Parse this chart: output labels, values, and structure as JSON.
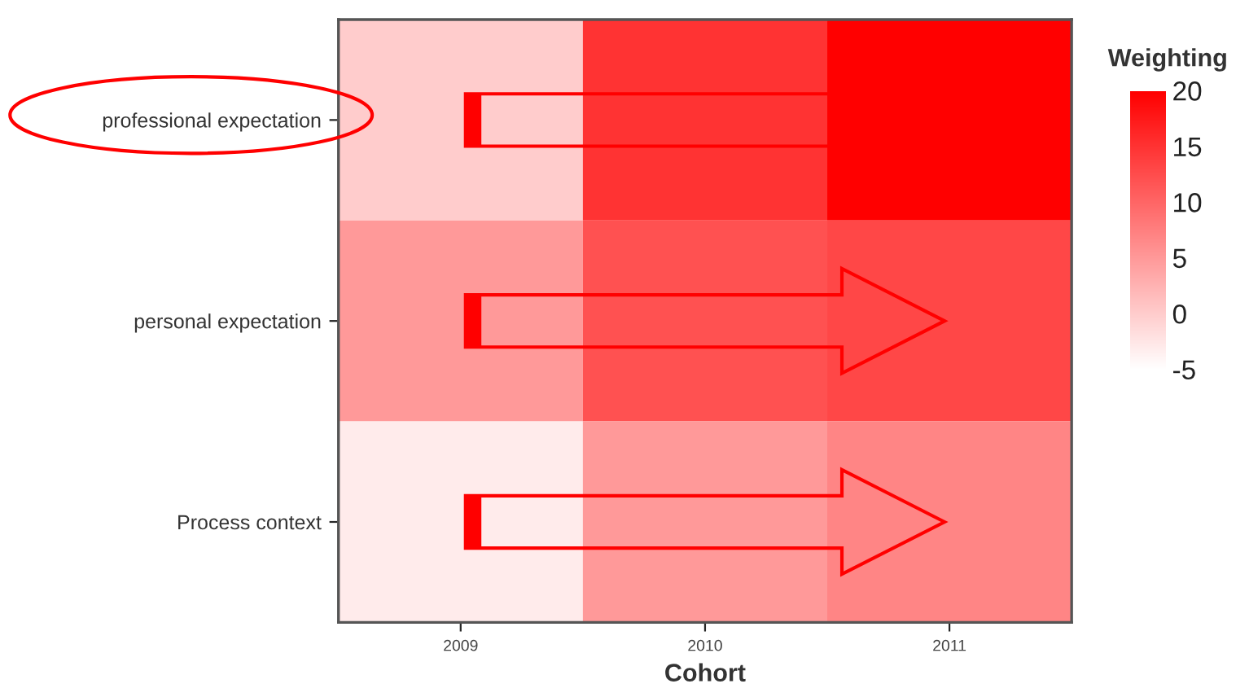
{
  "chart_data": {
    "type": "heatmap",
    "xlabel": "Cohort",
    "legend_title": "Weighting",
    "categories": [
      "2009",
      "2010",
      "2011"
    ],
    "y_categories": [
      "professional expectation",
      "personal expectation",
      "Process context"
    ],
    "cells": [
      [
        0,
        15,
        20
      ],
      [
        5,
        12,
        13
      ],
      [
        -3,
        5,
        7
      ]
    ],
    "clim": [
      -5,
      20
    ],
    "cticks": [
      20,
      15,
      10,
      5,
      0,
      -5
    ]
  }
}
